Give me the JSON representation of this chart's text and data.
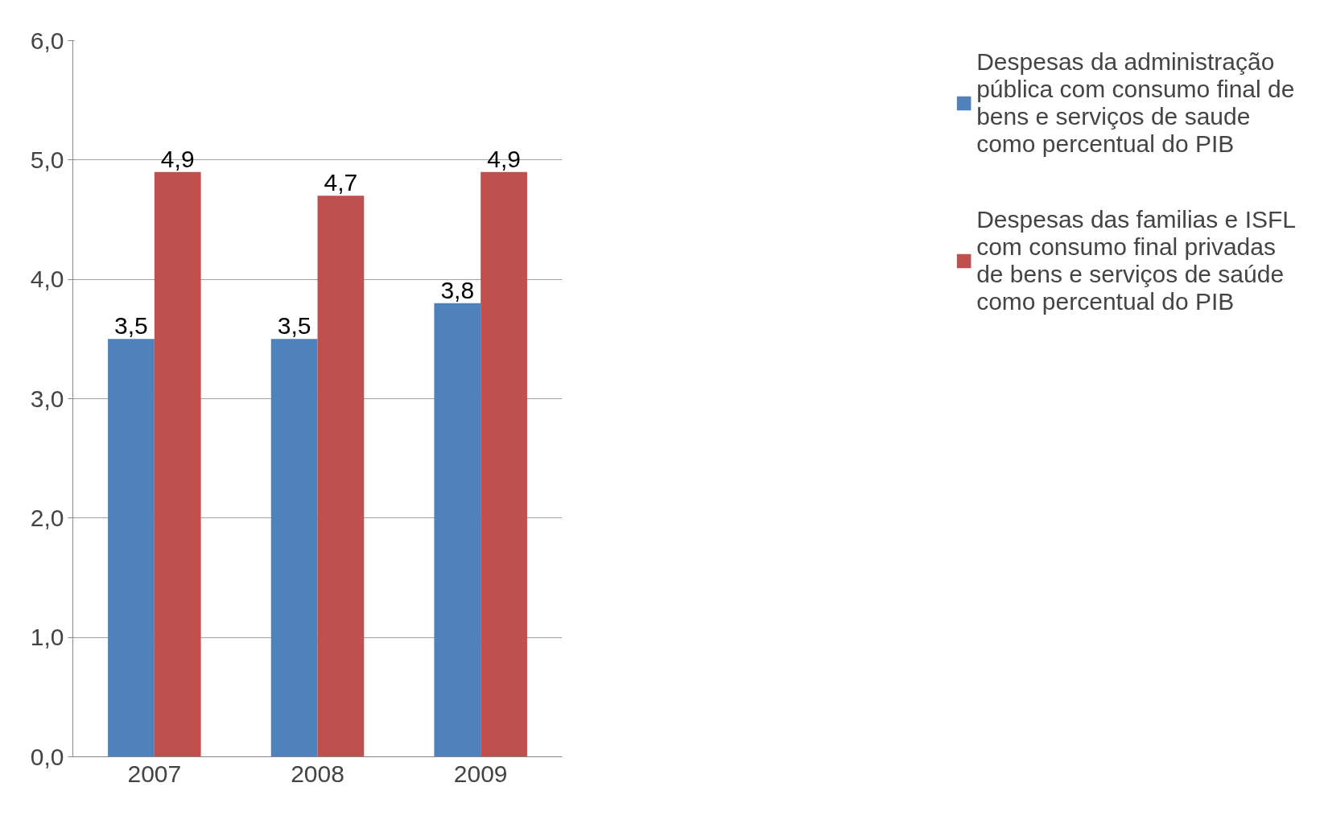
{
  "chart_data": {
    "type": "bar",
    "categories": [
      "2007",
      "2008",
      "2009"
    ],
    "series": [
      {
        "name": "Despesas da administração pública com consumo final de bens e serviços de saude como percentual do PIB",
        "color": "#4f81bd",
        "values": [
          3.5,
          3.5,
          3.8
        ],
        "value_labels": [
          "3,5",
          "3,5",
          "3,8"
        ]
      },
      {
        "name": "Despesas das familias e ISFL com consumo final privadas de bens e serviços de saúde como percentual do PIB",
        "color": "#c0504d",
        "values": [
          4.9,
          4.7,
          4.9
        ],
        "value_labels": [
          "4,9",
          "4,7",
          "4,9"
        ]
      }
    ],
    "ylim": [
      0,
      6
    ],
    "yticks": [
      {
        "value": 0,
        "label": "0,0"
      },
      {
        "value": 1,
        "label": "1,0"
      },
      {
        "value": 2,
        "label": "2,0"
      },
      {
        "value": 3,
        "label": "3,0"
      },
      {
        "value": 4,
        "label": "4,0"
      },
      {
        "value": 5,
        "label": "5,0"
      },
      {
        "value": 6,
        "label": "6,0"
      }
    ],
    "grid": "y",
    "legend": "right"
  }
}
